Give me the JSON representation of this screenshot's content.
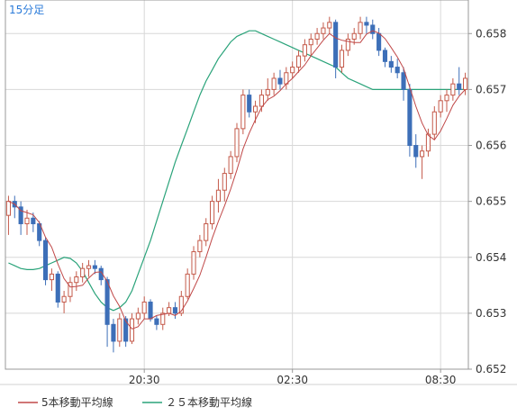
{
  "chart_data": {
    "type": "candlestick",
    "timeframe_label": "15分足",
    "y_ticks": [
      "0.658",
      "0.657",
      "0.656",
      "0.655",
      "0.654",
      "0.653",
      "0.652"
    ],
    "ylim": [
      0.652,
      0.6586
    ],
    "x_ticks": [
      {
        "label": "20:30",
        "index": 22
      },
      {
        "label": "02:30",
        "index": 46
      },
      {
        "label": "08:30",
        "index": 70
      }
    ],
    "legend": [
      {
        "label": "5本移動平均線",
        "color": "#c04848"
      },
      {
        "label": "２５本移動平均線",
        "color": "#2aa37a"
      }
    ],
    "colors": {
      "up_border": "#c45a4a",
      "down": "#3d6fb8",
      "ma5": "#c04848",
      "ma25": "#2aa37a",
      "grid": "#d8d8d8",
      "axis": "#999999"
    },
    "candles": [
      [
        0.65475,
        0.6551,
        0.6544,
        0.655
      ],
      [
        0.655,
        0.6551,
        0.6547,
        0.6549
      ],
      [
        0.6549,
        0.655,
        0.6544,
        0.6546
      ],
      [
        0.6546,
        0.65485,
        0.6544,
        0.6547
      ],
      [
        0.6547,
        0.6548,
        0.65445,
        0.6546
      ],
      [
        0.6546,
        0.65465,
        0.6542,
        0.6543
      ],
      [
        0.6543,
        0.65435,
        0.6535,
        0.6536
      ],
      [
        0.6536,
        0.6538,
        0.6534,
        0.6537
      ],
      [
        0.6537,
        0.65375,
        0.6531,
        0.6532
      ],
      [
        0.6532,
        0.6534,
        0.653,
        0.6533
      ],
      [
        0.6533,
        0.65365,
        0.6532,
        0.65355
      ],
      [
        0.65355,
        0.65375,
        0.6534,
        0.65365
      ],
      [
        0.65365,
        0.6539,
        0.65355,
        0.6538
      ],
      [
        0.6538,
        0.65395,
        0.65365,
        0.65385
      ],
      [
        0.65385,
        0.65395,
        0.6537,
        0.6538
      ],
      [
        0.6538,
        0.65385,
        0.6535,
        0.6536
      ],
      [
        0.6536,
        0.65365,
        0.6524,
        0.6528
      ],
      [
        0.6528,
        0.6529,
        0.6523,
        0.6525
      ],
      [
        0.6525,
        0.653,
        0.6524,
        0.6529
      ],
      [
        0.6529,
        0.65295,
        0.6524,
        0.6525
      ],
      [
        0.6525,
        0.653,
        0.65245,
        0.6529
      ],
      [
        0.6529,
        0.6531,
        0.6528,
        0.653
      ],
      [
        0.653,
        0.6533,
        0.6529,
        0.6532
      ],
      [
        0.6532,
        0.65325,
        0.65285,
        0.6529
      ],
      [
        0.6529,
        0.65295,
        0.6527,
        0.6528
      ],
      [
        0.6528,
        0.6531,
        0.6527,
        0.653
      ],
      [
        0.653,
        0.6532,
        0.65295,
        0.6531
      ],
      [
        0.6531,
        0.6532,
        0.6529,
        0.653
      ],
      [
        0.653,
        0.6534,
        0.65295,
        0.6533
      ],
      [
        0.6533,
        0.6538,
        0.65325,
        0.6537
      ],
      [
        0.6537,
        0.6542,
        0.6536,
        0.6541
      ],
      [
        0.6541,
        0.6544,
        0.654,
        0.6543
      ],
      [
        0.6543,
        0.6547,
        0.6542,
        0.6546
      ],
      [
        0.6546,
        0.6551,
        0.6545,
        0.655
      ],
      [
        0.655,
        0.6554,
        0.6548,
        0.6552
      ],
      [
        0.6552,
        0.6556,
        0.655,
        0.6555
      ],
      [
        0.6555,
        0.6559,
        0.6554,
        0.6558
      ],
      [
        0.6558,
        0.6564,
        0.6557,
        0.6563
      ],
      [
        0.6563,
        0.657,
        0.6562,
        0.6569
      ],
      [
        0.6569,
        0.657,
        0.6565,
        0.6566
      ],
      [
        0.6566,
        0.6568,
        0.6564,
        0.6567
      ],
      [
        0.6567,
        0.657,
        0.6566,
        0.6569
      ],
      [
        0.6569,
        0.6572,
        0.6568,
        0.657
      ],
      [
        0.657,
        0.6573,
        0.6569,
        0.6572
      ],
      [
        0.6572,
        0.65735,
        0.657,
        0.6571
      ],
      [
        0.6571,
        0.6574,
        0.657,
        0.6573
      ],
      [
        0.6573,
        0.6575,
        0.6572,
        0.6574
      ],
      [
        0.6574,
        0.6577,
        0.6573,
        0.6576
      ],
      [
        0.6576,
        0.6579,
        0.6575,
        0.6578
      ],
      [
        0.6578,
        0.658,
        0.6576,
        0.6579
      ],
      [
        0.6579,
        0.6581,
        0.6578,
        0.658
      ],
      [
        0.658,
        0.6582,
        0.6579,
        0.6581
      ],
      [
        0.6581,
        0.6583,
        0.658,
        0.6582
      ],
      [
        0.6582,
        0.65825,
        0.6572,
        0.6574
      ],
      [
        0.6574,
        0.6578,
        0.6573,
        0.6577
      ],
      [
        0.6577,
        0.658,
        0.6576,
        0.6579
      ],
      [
        0.6579,
        0.6581,
        0.6578,
        0.658
      ],
      [
        0.658,
        0.6583,
        0.6579,
        0.6582
      ],
      [
        0.6582,
        0.6583,
        0.658,
        0.65815
      ],
      [
        0.65815,
        0.65825,
        0.6579,
        0.658
      ],
      [
        0.658,
        0.6581,
        0.6576,
        0.6577
      ],
      [
        0.6577,
        0.65775,
        0.6574,
        0.6575
      ],
      [
        0.6575,
        0.6576,
        0.6573,
        0.6574
      ],
      [
        0.6574,
        0.65755,
        0.6572,
        0.6573
      ],
      [
        0.6573,
        0.6574,
        0.6568,
        0.657
      ],
      [
        0.657,
        0.6571,
        0.6558,
        0.656
      ],
      [
        0.656,
        0.6562,
        0.6556,
        0.6558
      ],
      [
        0.6558,
        0.656,
        0.6554,
        0.6559
      ],
      [
        0.6559,
        0.6563,
        0.6558,
        0.6562
      ],
      [
        0.6562,
        0.6567,
        0.6561,
        0.6566
      ],
      [
        0.6566,
        0.6569,
        0.6565,
        0.6568
      ],
      [
        0.6568,
        0.657,
        0.6566,
        0.6569
      ],
      [
        0.6569,
        0.6572,
        0.6568,
        0.6571
      ],
      [
        0.6571,
        0.6574,
        0.6569,
        0.657
      ],
      [
        0.657,
        0.6573,
        0.6569,
        0.6572
      ]
    ],
    "ma25": [
      0.6539,
      0.65385,
      0.6538,
      0.65378,
      0.65378,
      0.6538,
      0.65385,
      0.6539,
      0.65395,
      0.654,
      0.65398,
      0.6539,
      0.65375,
      0.65355,
      0.65335,
      0.6532,
      0.6531,
      0.65305,
      0.6531,
      0.6532,
      0.6534,
      0.6537,
      0.654,
      0.6543,
      0.65465,
      0.655,
      0.65535,
      0.6557,
      0.656,
      0.6563,
      0.6566,
      0.6569,
      0.65715,
      0.65735,
      0.65755,
      0.6577,
      0.65785,
      0.65795,
      0.658,
      0.65805,
      0.65805,
      0.658,
      0.65795,
      0.6579,
      0.65785,
      0.6578,
      0.65775,
      0.6577,
      0.65765,
      0.6576,
      0.65755,
      0.6575,
      0.65745,
      0.6574,
      0.6573,
      0.6572,
      0.65715,
      0.6571,
      0.65705,
      0.657,
      0.657,
      0.657,
      0.657,
      0.657,
      0.657,
      0.657,
      0.657,
      0.657,
      0.657,
      0.657,
      0.657,
      0.657,
      0.657,
      0.657,
      0.657
    ]
  }
}
